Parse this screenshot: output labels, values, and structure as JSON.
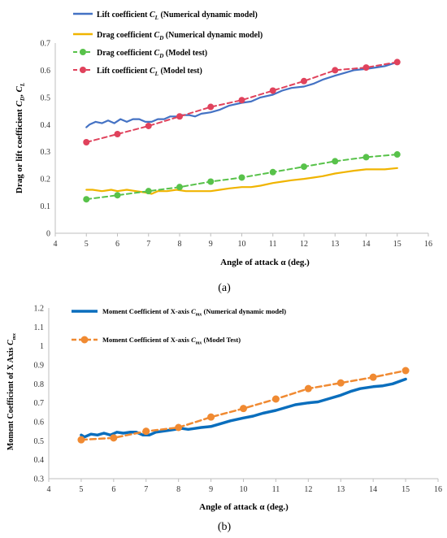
{
  "chart_data": [
    {
      "type": "line",
      "caption": "(a)",
      "xlabel": "Angle of attack α (deg.)",
      "ylabel": "Drag or lift coefficient C_D, C_L",
      "xlim": [
        4,
        16
      ],
      "ylim": [
        0,
        0.7
      ],
      "xticks": [
        4,
        5,
        6,
        7,
        8,
        9,
        10,
        11,
        12,
        13,
        14,
        15,
        16
      ],
      "yticks": [
        0,
        0.1,
        0.2,
        0.3,
        0.4,
        0.5,
        0.6,
        0.7
      ],
      "grid": false,
      "legend_position": "top-left",
      "series": [
        {
          "name": "Lift coefficient C_L (Numerical dynamic model)",
          "color": "#4472c4",
          "style": "solid",
          "x": [
            5,
            5.1,
            5.3,
            5.5,
            5.7,
            5.9,
            6.1,
            6.3,
            6.5,
            6.7,
            6.9,
            7.1,
            7.3,
            7.5,
            7.7,
            7.9,
            8.1,
            8.3,
            8.5,
            8.7,
            9,
            9.3,
            9.6,
            10,
            10.3,
            10.6,
            11,
            11.3,
            11.6,
            12,
            12.3,
            12.6,
            13,
            13.3,
            13.6,
            14,
            14.3,
            14.6,
            15
          ],
          "y": [
            0.39,
            0.4,
            0.41,
            0.405,
            0.415,
            0.405,
            0.42,
            0.41,
            0.42,
            0.42,
            0.41,
            0.41,
            0.42,
            0.42,
            0.43,
            0.43,
            0.435,
            0.435,
            0.43,
            0.44,
            0.445,
            0.455,
            0.47,
            0.48,
            0.485,
            0.5,
            0.51,
            0.525,
            0.535,
            0.54,
            0.55,
            0.565,
            0.58,
            0.59,
            0.6,
            0.605,
            0.61,
            0.615,
            0.63
          ]
        },
        {
          "name": "Drag coefficient C_D (Numerical dynamic model)",
          "color": "#f0b400",
          "style": "solid",
          "x": [
            5,
            5.2,
            5.5,
            5.8,
            6,
            6.3,
            6.6,
            6.9,
            7.1,
            7.3,
            7.6,
            7.9,
            8.2,
            8.5,
            8.8,
            9,
            9.3,
            9.6,
            10,
            10.3,
            10.6,
            11,
            11.3,
            11.6,
            12,
            12.3,
            12.6,
            13,
            13.3,
            13.6,
            14,
            14.3,
            14.6,
            15
          ],
          "y": [
            0.16,
            0.16,
            0.155,
            0.16,
            0.155,
            0.16,
            0.155,
            0.15,
            0.145,
            0.155,
            0.155,
            0.16,
            0.155,
            0.155,
            0.155,
            0.155,
            0.16,
            0.165,
            0.17,
            0.17,
            0.175,
            0.185,
            0.19,
            0.195,
            0.2,
            0.205,
            0.21,
            0.22,
            0.225,
            0.23,
            0.235,
            0.235,
            0.235,
            0.24
          ]
        },
        {
          "name": "Drag coefficient C_D (Model test)",
          "color": "#58c24a",
          "style": "dashed",
          "marker": "circle",
          "x": [
            5,
            6,
            7,
            8,
            9,
            10,
            11,
            12,
            13,
            14,
            15
          ],
          "y": [
            0.125,
            0.14,
            0.155,
            0.17,
            0.19,
            0.205,
            0.225,
            0.245,
            0.265,
            0.28,
            0.29
          ]
        },
        {
          "name": "Lift coefficient C_L (Model test)",
          "color": "#e0425c",
          "style": "dashed",
          "marker": "circle",
          "x": [
            5,
            6,
            7,
            8,
            9,
            10,
            11,
            12,
            13,
            14,
            15
          ],
          "y": [
            0.335,
            0.365,
            0.395,
            0.43,
            0.465,
            0.49,
            0.525,
            0.56,
            0.6,
            0.61,
            0.63
          ]
        }
      ]
    },
    {
      "type": "line",
      "caption": "(b)",
      "xlabel": "Angle of attack α (deg.)",
      "ylabel": "Moment Coefficient of X Axis C_mx",
      "xlim": [
        4,
        16
      ],
      "ylim": [
        0.3,
        1.2
      ],
      "xticks": [
        4,
        5,
        6,
        7,
        8,
        9,
        10,
        11,
        12,
        13,
        14,
        15,
        16
      ],
      "yticks": [
        0.3,
        0.4,
        0.5,
        0.6,
        0.7,
        0.8,
        0.9,
        1,
        1.1,
        1.2
      ],
      "grid": false,
      "legend_position": "top-left",
      "series": [
        {
          "name": "Moment Coefficient of X-axis C_mx (Numerical dynamic model)",
          "color": "#0a6ebd",
          "style": "solid",
          "x": [
            5,
            5.1,
            5.3,
            5.5,
            5.7,
            5.9,
            6.1,
            6.3,
            6.5,
            6.7,
            6.9,
            7.1,
            7.3,
            7.5,
            7.7,
            7.9,
            8.1,
            8.3,
            8.5,
            8.7,
            9,
            9.3,
            9.6,
            10,
            10.3,
            10.6,
            11,
            11.3,
            11.6,
            12,
            12.3,
            12.6,
            13,
            13.3,
            13.6,
            14,
            14.3,
            14.6,
            15
          ],
          "y": [
            0.53,
            0.52,
            0.535,
            0.53,
            0.54,
            0.53,
            0.545,
            0.54,
            0.545,
            0.545,
            0.53,
            0.53,
            0.545,
            0.55,
            0.555,
            0.56,
            0.565,
            0.56,
            0.565,
            0.57,
            0.575,
            0.59,
            0.605,
            0.62,
            0.63,
            0.645,
            0.66,
            0.675,
            0.69,
            0.7,
            0.705,
            0.72,
            0.74,
            0.76,
            0.775,
            0.785,
            0.79,
            0.8,
            0.825
          ]
        },
        {
          "name": "Moment Coefficient of X-axis C_mx (Model Test)",
          "color": "#f08a32",
          "style": "dashed",
          "marker": "circle",
          "x": [
            5,
            6,
            7,
            8,
            9,
            10,
            11,
            12,
            13,
            14,
            15
          ],
          "y": [
            0.505,
            0.515,
            0.55,
            0.57,
            0.625,
            0.67,
            0.72,
            0.775,
            0.805,
            0.835,
            0.87
          ]
        }
      ]
    }
  ]
}
